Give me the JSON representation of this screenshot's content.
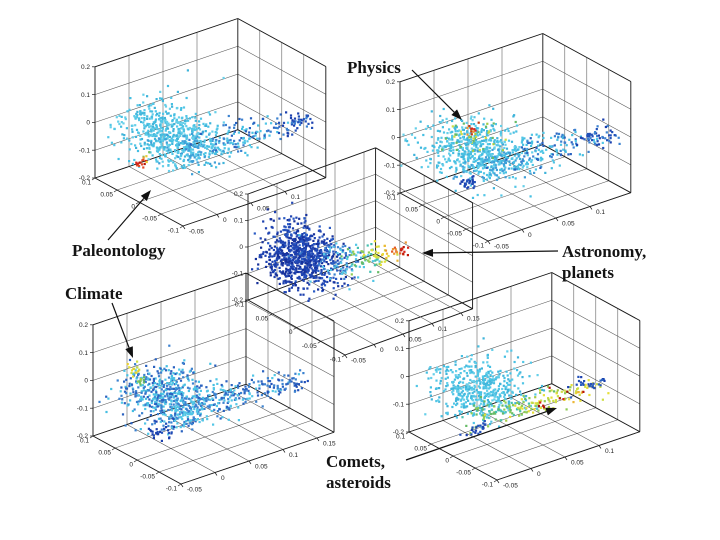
{
  "figure": {
    "background": "#ffffff",
    "axis_color": "#333333",
    "edge_color": "#1a1a1a",
    "arrow_color": "#111111"
  },
  "annotations": [
    {
      "id": "physics",
      "lines": [
        "Physics"
      ]
    },
    {
      "id": "paleontology",
      "lines": [
        "Paleontology"
      ]
    },
    {
      "id": "astronomy",
      "lines": [
        "Astronomy,",
        "planets"
      ]
    },
    {
      "id": "climate",
      "lines": [
        "Climate"
      ]
    },
    {
      "id": "comets",
      "lines": [
        "Comets,",
        "asteroids"
      ]
    }
  ],
  "chart_data": [
    {
      "id": "top-left",
      "type": "scatter",
      "projection": "3d",
      "annotation": "Paleontology",
      "highlight": "small red/orange cluster at lower-left of cyan cloud",
      "xlim": [
        -0.05,
        0.16
      ],
      "ylim": [
        -0.1,
        0.1
      ],
      "zlim": [
        -0.2,
        0.2
      ],
      "x_ticks": [
        -0.05,
        0,
        0.05,
        0.1
      ],
      "y_ticks": [
        0.1,
        0.05,
        0,
        -0.05,
        -0.1
      ],
      "z_ticks": [
        0.2,
        0.1,
        0,
        -0.1,
        -0.2
      ],
      "clusters": [
        {
          "name": "main-cloud",
          "n": 520,
          "c": [
            0.008,
            0.02,
            -0.02
          ],
          "s": [
            0.026,
            0.042,
            0.036
          ],
          "colors": [
            "#52c6e6",
            "#45bfe2",
            "#66cfe9",
            "#3fb4da"
          ]
        },
        {
          "name": "cloud-underside",
          "n": 140,
          "c": [
            0.02,
            -0.01,
            -0.06
          ],
          "s": [
            0.025,
            0.02,
            0.022
          ],
          "colors": [
            "#52c6e6",
            "#3f9fd8"
          ]
        },
        {
          "name": "tail",
          "n": 120,
          "c": [
            0.09,
            -0.025,
            -0.05
          ],
          "s": [
            0.032,
            0.02,
            0.018
          ],
          "colors": [
            "#3b82d0",
            "#52c6e6",
            "#2a62c0",
            "#45bfe2"
          ]
        },
        {
          "name": "tail-end",
          "n": 50,
          "c": [
            0.148,
            -0.05,
            -0.035
          ],
          "s": [
            0.015,
            0.012,
            0.014
          ],
          "colors": [
            "#2250b8",
            "#1b3fae",
            "#3b82d0"
          ]
        },
        {
          "name": "paleontology-highlight-red",
          "n": 13,
          "c": [
            -0.032,
            0.02,
            -0.098
          ],
          "s": [
            0.005,
            0.005,
            0.009
          ],
          "colors": [
            "#d8251a",
            "#b81508",
            "#e24a28"
          ]
        },
        {
          "name": "paleontology-highlight-spark",
          "n": 5,
          "c": [
            -0.027,
            0.02,
            -0.078
          ],
          "s": [
            0.004,
            0.004,
            0.007
          ],
          "colors": [
            "#e6cf30",
            "#7cc060",
            "#ec9733"
          ]
        }
      ]
    },
    {
      "id": "top-right",
      "type": "scatter",
      "projection": "3d",
      "annotation": "Physics",
      "highlight": "red/orange points with yellow-green halo at top of cloud",
      "xlim": [
        -0.05,
        0.16
      ],
      "ylim": [
        -0.1,
        0.1
      ],
      "zlim": [
        -0.2,
        0.2
      ],
      "x_ticks": [
        -0.05,
        0,
        0.05,
        0.1
      ],
      "y_ticks": [
        0.1,
        0.05,
        0,
        -0.05,
        -0.1
      ],
      "z_ticks": [
        0.2,
        0.1,
        0,
        -0.1,
        -0.2
      ],
      "clusters": [
        {
          "name": "main-cloud",
          "n": 520,
          "c": [
            0.008,
            0.02,
            -0.02
          ],
          "s": [
            0.026,
            0.042,
            0.036
          ],
          "colors": [
            "#52c6e6",
            "#45bfe2",
            "#66cfe9",
            "#3fb4da"
          ]
        },
        {
          "name": "cloud-underside",
          "n": 140,
          "c": [
            0.02,
            -0.01,
            -0.06
          ],
          "s": [
            0.025,
            0.02,
            0.022
          ],
          "colors": [
            "#52c6e6",
            "#3f9fd8"
          ]
        },
        {
          "name": "tail",
          "n": 120,
          "c": [
            0.09,
            -0.025,
            -0.05
          ],
          "s": [
            0.032,
            0.02,
            0.018
          ],
          "colors": [
            "#3b82d0",
            "#52c6e6",
            "#2a62c0",
            "#45bfe2"
          ]
        },
        {
          "name": "tail-end",
          "n": 50,
          "c": [
            0.148,
            -0.05,
            -0.035
          ],
          "s": [
            0.015,
            0.012,
            0.014
          ],
          "colors": [
            "#2250b8",
            "#1b3fae",
            "#3b82d0"
          ]
        },
        {
          "name": "physics-green-halo",
          "n": 55,
          "c": [
            0.0,
            0.01,
            0.042
          ],
          "s": [
            0.018,
            0.02,
            0.022
          ],
          "colors": [
            "#a8cc44",
            "#66bb66",
            "#cede45",
            "#52c6e6",
            "#45bfe2"
          ]
        },
        {
          "name": "physics-highlight-red",
          "n": 11,
          "c": [
            -0.01,
            0.0,
            0.085
          ],
          "s": [
            0.006,
            0.005,
            0.007
          ],
          "colors": [
            "#d8251a",
            "#ec9733",
            "#c83a10"
          ]
        },
        {
          "name": "navy-clump",
          "n": 26,
          "c": [
            -0.012,
            0.0,
            -0.103
          ],
          "s": [
            0.009,
            0.008,
            0.011
          ],
          "colors": [
            "#1b3fae",
            "#2250b8"
          ]
        }
      ]
    },
    {
      "id": "center",
      "type": "scatter",
      "projection": "3d",
      "annotation": "Astronomy, planets",
      "highlight": "red points at right end of rainbow tail leaving dark-blue core",
      "xlim": [
        -0.05,
        0.17
      ],
      "ylim": [
        -0.1,
        0.1
      ],
      "zlim": [
        -0.2,
        0.2
      ],
      "x_ticks": [
        -0.05,
        0,
        0.05,
        0.1,
        0.15
      ],
      "y_ticks": [
        0.1,
        0.05,
        0,
        -0.05,
        -0.1
      ],
      "z_ticks": [
        0.2,
        0.1,
        0,
        -0.1,
        -0.2
      ],
      "clusters": [
        {
          "name": "dense-core-navy",
          "n": 580,
          "c": [
            -0.01,
            0.03,
            0.02
          ],
          "s": [
            0.016,
            0.032,
            0.045
          ],
          "colors": [
            "#1b3fae",
            "#16309a",
            "#2348b4",
            "#2a5ac4"
          ]
        },
        {
          "name": "core-left-lobe",
          "n": 200,
          "c": [
            -0.022,
            0.055,
            -0.045
          ],
          "s": [
            0.012,
            0.024,
            0.038
          ],
          "colors": [
            "#1b3fae",
            "#2348b4",
            "#16309a"
          ]
        },
        {
          "name": "fringe-blue",
          "n": 90,
          "c": [
            0.02,
            0.0,
            -0.005
          ],
          "s": [
            0.018,
            0.02,
            0.03
          ],
          "colors": [
            "#2a62c0",
            "#3b82d0",
            "#52c6e6"
          ]
        },
        {
          "name": "tail-cyan-green",
          "n": 50,
          "c": [
            0.06,
            -0.005,
            -0.02
          ],
          "s": [
            0.015,
            0.014,
            0.02
          ],
          "colors": [
            "#52c6e6",
            "#45c0b0",
            "#66bb66",
            "#8fcc55"
          ]
        },
        {
          "name": "tail-yellow",
          "n": 26,
          "c": [
            0.09,
            -0.005,
            -0.032
          ],
          "s": [
            0.012,
            0.01,
            0.012
          ],
          "colors": [
            "#cede45",
            "#e6df38",
            "#ecb838"
          ]
        },
        {
          "name": "tail-orange",
          "n": 12,
          "c": [
            0.115,
            -0.005,
            -0.04
          ],
          "s": [
            0.007,
            0.007,
            0.007
          ],
          "colors": [
            "#ec9733",
            "#e25a28"
          ]
        },
        {
          "name": "astronomy-highlight-red",
          "n": 9,
          "c": [
            0.133,
            -0.005,
            -0.05
          ],
          "s": [
            0.005,
            0.005,
            0.005
          ],
          "colors": [
            "#d8251a",
            "#c01808"
          ]
        }
      ]
    },
    {
      "id": "bottom-left",
      "type": "scatter",
      "projection": "3d",
      "annotation": "Climate",
      "highlight": "yellow/green points at upper-left edge of cloud",
      "xlim": [
        -0.05,
        0.175
      ],
      "ylim": [
        -0.1,
        0.1
      ],
      "zlim": [
        -0.2,
        0.2
      ],
      "x_ticks": [
        -0.05,
        0,
        0.05,
        0.1,
        0.15
      ],
      "y_ticks": [
        0.1,
        0.05,
        0,
        -0.05,
        -0.1
      ],
      "z_ticks": [
        0.2,
        0.1,
        0,
        -0.1,
        -0.2
      ],
      "clusters": [
        {
          "name": "main-cloud",
          "n": 480,
          "c": [
            0.005,
            0.02,
            -0.03
          ],
          "s": [
            0.026,
            0.04,
            0.036
          ],
          "colors": [
            "#52c6e6",
            "#3b82d0",
            "#45bfe2",
            "#2a62c0"
          ]
        },
        {
          "name": "cloud-underside",
          "n": 150,
          "c": [
            0.02,
            -0.01,
            -0.07
          ],
          "s": [
            0.025,
            0.02,
            0.02
          ],
          "colors": [
            "#3b82d0",
            "#52c6e6"
          ]
        },
        {
          "name": "tail",
          "n": 130,
          "c": [
            0.085,
            -0.025,
            -0.055
          ],
          "s": [
            0.032,
            0.02,
            0.016
          ],
          "colors": [
            "#3b82d0",
            "#52c6e6",
            "#2a62c0"
          ]
        },
        {
          "name": "tail-end",
          "n": 40,
          "c": [
            0.14,
            -0.05,
            -0.045
          ],
          "s": [
            0.014,
            0.011,
            0.012
          ],
          "colors": [
            "#2a62c0",
            "#3b82d0",
            "#2250b8"
          ]
        },
        {
          "name": "navy-clump-bottom",
          "n": 30,
          "c": [
            -0.02,
            -0.005,
            -0.12
          ],
          "s": [
            0.01,
            0.009,
            0.013
          ],
          "colors": [
            "#1b3fae",
            "#2250b8"
          ]
        },
        {
          "name": "climate-highlight-yellow",
          "n": 13,
          "c": [
            -0.034,
            0.03,
            0.085
          ],
          "s": [
            0.005,
            0.006,
            0.012
          ],
          "colors": [
            "#e6df38",
            "#cede45",
            "#e6cf30"
          ]
        },
        {
          "name": "climate-highlight-green",
          "n": 9,
          "c": [
            -0.03,
            0.02,
            0.042
          ],
          "s": [
            0.005,
            0.006,
            0.012
          ],
          "colors": [
            "#8fcc55",
            "#66bb66",
            "#a8cc44"
          ]
        }
      ]
    },
    {
      "id": "bottom-right",
      "type": "scatter",
      "projection": "3d",
      "annotation": "Comets, asteroids",
      "highlight": "dark-red points along yellow-green lower band of tail",
      "xlim": [
        -0.05,
        0.16
      ],
      "ylim": [
        -0.1,
        0.1
      ],
      "zlim": [
        -0.2,
        0.2
      ],
      "x_ticks": [
        -0.05,
        0,
        0.05,
        0.1
      ],
      "y_ticks": [
        0.1,
        0.05,
        0,
        -0.05,
        -0.1
      ],
      "z_ticks": [
        0.2,
        0.1,
        0,
        -0.1,
        -0.2
      ],
      "clusters": [
        {
          "name": "main-cloud",
          "n": 470,
          "c": [
            0.0,
            0.02,
            -0.015
          ],
          "s": [
            0.025,
            0.038,
            0.034
          ],
          "colors": [
            "#52c6e6",
            "#45bfe2",
            "#66cfe9",
            "#3fb4da"
          ]
        },
        {
          "name": "teal-underside",
          "n": 90,
          "c": [
            0.015,
            -0.015,
            -0.07
          ],
          "s": [
            0.026,
            0.016,
            0.014
          ],
          "colors": [
            "#45c0b0",
            "#66bb66",
            "#52c6e6",
            "#8fcc55"
          ]
        },
        {
          "name": "band-yellowgreen",
          "n": 70,
          "c": [
            0.065,
            -0.03,
            -0.075
          ],
          "s": [
            0.03,
            0.013,
            0.011
          ],
          "colors": [
            "#8fcc55",
            "#cede45",
            "#e6df38",
            "#a8cc44"
          ]
        },
        {
          "name": "band-yellow-far",
          "n": 26,
          "c": [
            0.115,
            -0.045,
            -0.065
          ],
          "s": [
            0.016,
            0.01,
            0.01
          ],
          "colors": [
            "#e6df38",
            "#cede45",
            "#ecb838"
          ]
        },
        {
          "name": "comets-highlight-red",
          "n": 9,
          "c": [
            0.08,
            -0.03,
            -0.08
          ],
          "s": [
            0.03,
            0.012,
            0.008
          ],
          "colors": [
            "#b81508",
            "#991408",
            "#d8251a"
          ]
        },
        {
          "name": "navy-right",
          "n": 26,
          "c": [
            0.125,
            -0.04,
            -0.05
          ],
          "s": [
            0.016,
            0.009,
            0.011
          ],
          "colors": [
            "#1b3fae",
            "#2250b8",
            "#2a62c0"
          ]
        },
        {
          "name": "navy-clump-bottom",
          "n": 20,
          "c": [
            -0.025,
            -0.01,
            -0.115
          ],
          "s": [
            0.009,
            0.008,
            0.01
          ],
          "colors": [
            "#2250b8",
            "#1b3fae"
          ]
        }
      ]
    }
  ]
}
